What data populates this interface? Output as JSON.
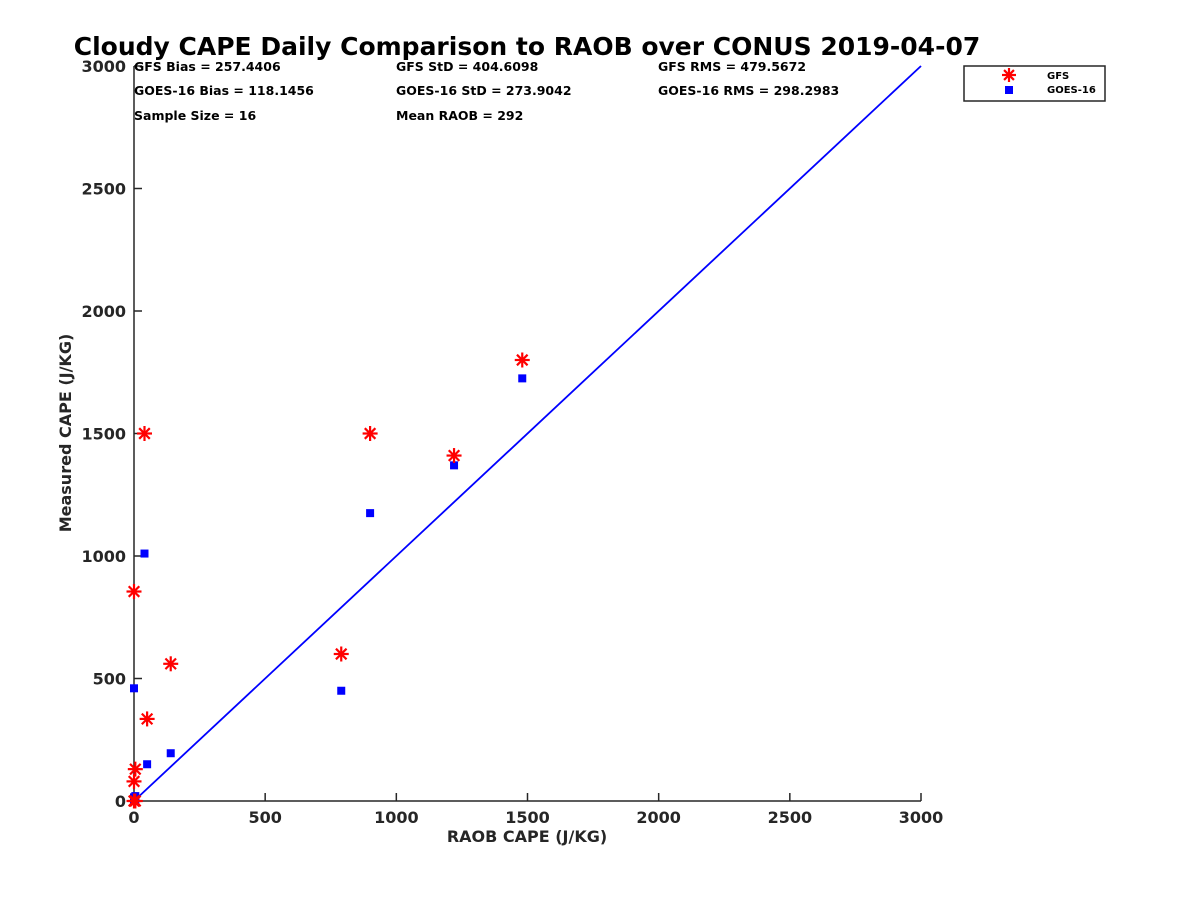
{
  "chart_data": {
    "type": "scatter",
    "title": "Cloudy CAPE Daily Comparison to RAOB over CONUS 2019-04-07",
    "xlabel": "RAOB CAPE (J/KG)",
    "ylabel": "Measured CAPE (J/KG)",
    "xlim": [
      0,
      3000
    ],
    "ylim": [
      0,
      3000
    ],
    "xticks": [
      "0",
      "500",
      "1000",
      "1500",
      "2000",
      "2500",
      "3000"
    ],
    "yticks": [
      "0",
      "500",
      "1000",
      "1500",
      "2000",
      "2500",
      "3000"
    ],
    "grid": false,
    "legend_position": "top-right, outside plot",
    "reference_line": {
      "x": [
        0,
        3000
      ],
      "y": [
        0,
        3000
      ],
      "color": "#0000ff"
    },
    "series": [
      {
        "name": "GFS",
        "marker": "asterisk",
        "color": "#ff0000",
        "points": [
          [
            1480,
            1800
          ],
          [
            1220,
            1410
          ],
          [
            900,
            1500
          ],
          [
            790,
            600
          ],
          [
            40,
            1500
          ],
          [
            0,
            855
          ],
          [
            140,
            560
          ],
          [
            50,
            335
          ],
          [
            5,
            130
          ],
          [
            0,
            80
          ],
          [
            5,
            0
          ],
          [
            0,
            0
          ]
        ]
      },
      {
        "name": "GOES-16",
        "marker": "square",
        "color": "#0000ff",
        "points": [
          [
            1480,
            1725
          ],
          [
            1220,
            1370
          ],
          [
            900,
            1175
          ],
          [
            790,
            450
          ],
          [
            40,
            1010
          ],
          [
            0,
            460
          ],
          [
            140,
            195
          ],
          [
            50,
            150
          ],
          [
            5,
            20
          ],
          [
            0,
            15
          ],
          [
            5,
            0
          ],
          [
            0,
            5
          ]
        ]
      }
    ],
    "stats": {
      "gfs_bias": "GFS Bias = 257.4406",
      "gfs_std": "GFS StD = 404.6098",
      "gfs_rms": "GFS RMS = 479.5672",
      "goes_bias": "GOES-16 Bias = 118.1456",
      "goes_std": "GOES-16 StD = 273.9042",
      "goes_rms": "GOES-16 RMS = 298.2983",
      "sample_size": "Sample Size = 16",
      "mean_raob": "Mean RAOB = 292"
    }
  }
}
